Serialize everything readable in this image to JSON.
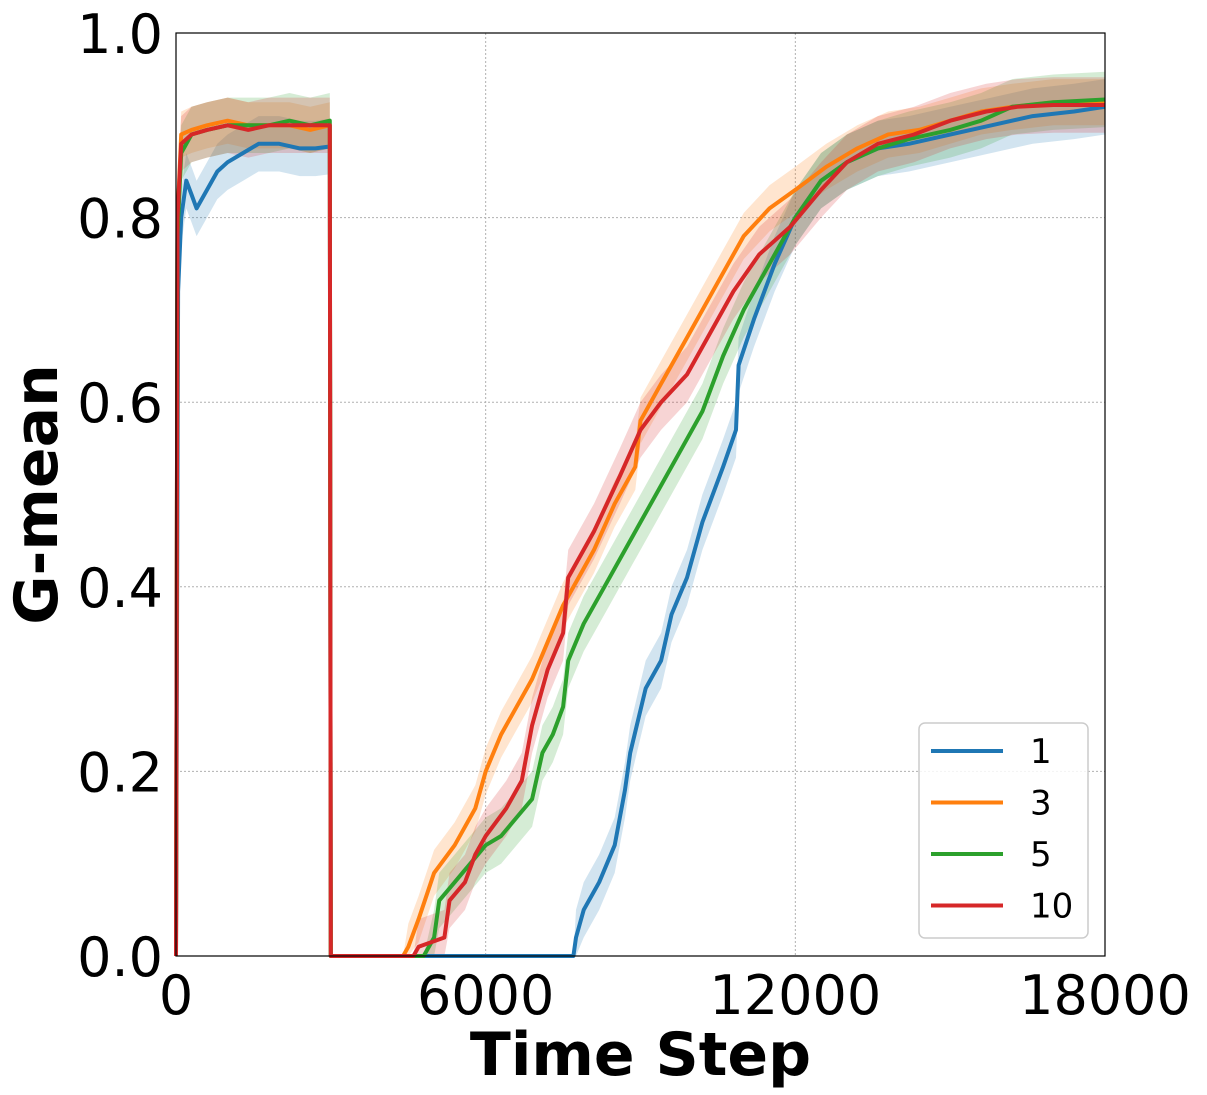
{
  "chart_data": {
    "type": "line",
    "xlabel": "Time Step",
    "ylabel": "G-mean",
    "xlim": [
      0,
      18000
    ],
    "ylim": [
      0,
      1
    ],
    "xticks": [
      0,
      6000,
      12000,
      18000
    ],
    "xtick_labels": [
      "0",
      "6000",
      "12000",
      "18000"
    ],
    "yticks": [
      0,
      0.2,
      0.4,
      0.6,
      0.8,
      1.0
    ],
    "ytick_labels": [
      "0.0",
      "0.2",
      "0.4",
      "0.6",
      "0.8",
      "1.0"
    ],
    "grid": true,
    "legend_position": "lower-right",
    "series": [
      {
        "name": "1",
        "color": "#1f77b4",
        "band": 0.03,
        "points": [
          [
            0,
            0
          ],
          [
            40,
            0.72
          ],
          [
            100,
            0.8
          ],
          [
            200,
            0.84
          ],
          [
            300,
            0.825
          ],
          [
            400,
            0.81
          ],
          [
            600,
            0.83
          ],
          [
            800,
            0.85
          ],
          [
            1000,
            0.86
          ],
          [
            1300,
            0.87
          ],
          [
            1600,
            0.88
          ],
          [
            2000,
            0.88
          ],
          [
            2400,
            0.875
          ],
          [
            2700,
            0.875
          ],
          [
            2980,
            0.877
          ],
          [
            3000,
            0
          ],
          [
            4800,
            0
          ],
          [
            7700,
            0
          ],
          [
            7750,
            0.02
          ],
          [
            7900,
            0.05
          ],
          [
            8200,
            0.08
          ],
          [
            8500,
            0.12
          ],
          [
            8700,
            0.18
          ],
          [
            8800,
            0.22
          ],
          [
            9100,
            0.29
          ],
          [
            9400,
            0.32
          ],
          [
            9600,
            0.37
          ],
          [
            9900,
            0.41
          ],
          [
            10200,
            0.47
          ],
          [
            10600,
            0.53
          ],
          [
            10850,
            0.57
          ],
          [
            10900,
            0.64
          ],
          [
            11200,
            0.69
          ],
          [
            11600,
            0.75
          ],
          [
            12000,
            0.8
          ],
          [
            12500,
            0.84
          ],
          [
            13000,
            0.86
          ],
          [
            13600,
            0.875
          ],
          [
            14200,
            0.88
          ],
          [
            15000,
            0.89
          ],
          [
            15800,
            0.9
          ],
          [
            16600,
            0.91
          ],
          [
            17400,
            0.915
          ],
          [
            18000,
            0.92
          ]
        ]
      },
      {
        "name": "3",
        "color": "#ff7f0e",
        "band": 0.025,
        "points": [
          [
            0,
            0
          ],
          [
            30,
            0.8
          ],
          [
            100,
            0.89
          ],
          [
            300,
            0.895
          ],
          [
            600,
            0.9
          ],
          [
            1000,
            0.905
          ],
          [
            1400,
            0.9
          ],
          [
            1800,
            0.9
          ],
          [
            2200,
            0.9
          ],
          [
            2600,
            0.895
          ],
          [
            2980,
            0.9
          ],
          [
            3000,
            0
          ],
          [
            4400,
            0
          ],
          [
            4500,
            0.01
          ],
          [
            4700,
            0.04
          ],
          [
            5000,
            0.09
          ],
          [
            5400,
            0.12
          ],
          [
            5800,
            0.16
          ],
          [
            6000,
            0.2
          ],
          [
            6300,
            0.24
          ],
          [
            6600,
            0.27
          ],
          [
            6900,
            0.3
          ],
          [
            7200,
            0.34
          ],
          [
            7500,
            0.38
          ],
          [
            7800,
            0.41
          ],
          [
            8100,
            0.44
          ],
          [
            8500,
            0.49
          ],
          [
            8900,
            0.53
          ],
          [
            9000,
            0.58
          ],
          [
            9400,
            0.62
          ],
          [
            9900,
            0.67
          ],
          [
            10500,
            0.73
          ],
          [
            11000,
            0.78
          ],
          [
            11500,
            0.81
          ],
          [
            12000,
            0.83
          ],
          [
            12600,
            0.855
          ],
          [
            13200,
            0.875
          ],
          [
            13800,
            0.89
          ],
          [
            14400,
            0.895
          ],
          [
            15000,
            0.905
          ],
          [
            15600,
            0.915
          ],
          [
            16200,
            0.92
          ],
          [
            17000,
            0.925
          ],
          [
            18000,
            0.925
          ]
        ]
      },
      {
        "name": "5",
        "color": "#2ca02c",
        "band": 0.03,
        "points": [
          [
            0,
            0
          ],
          [
            30,
            0.78
          ],
          [
            100,
            0.87
          ],
          [
            300,
            0.89
          ],
          [
            600,
            0.895
          ],
          [
            1000,
            0.9
          ],
          [
            1400,
            0.9
          ],
          [
            1800,
            0.9
          ],
          [
            2200,
            0.905
          ],
          [
            2600,
            0.9
          ],
          [
            2980,
            0.905
          ],
          [
            3000,
            0
          ],
          [
            4800,
            0
          ],
          [
            5000,
            0.02
          ],
          [
            5100,
            0.06
          ],
          [
            5400,
            0.08
          ],
          [
            5700,
            0.1
          ],
          [
            6000,
            0.12
          ],
          [
            6300,
            0.13
          ],
          [
            6600,
            0.15
          ],
          [
            6900,
            0.17
          ],
          [
            7100,
            0.22
          ],
          [
            7300,
            0.24
          ],
          [
            7500,
            0.27
          ],
          [
            7600,
            0.32
          ],
          [
            7900,
            0.36
          ],
          [
            8300,
            0.4
          ],
          [
            8800,
            0.45
          ],
          [
            9300,
            0.5
          ],
          [
            9800,
            0.55
          ],
          [
            10200,
            0.59
          ],
          [
            10600,
            0.65
          ],
          [
            11000,
            0.7
          ],
          [
            11500,
            0.75
          ],
          [
            12000,
            0.8
          ],
          [
            12500,
            0.84
          ],
          [
            13000,
            0.86
          ],
          [
            13600,
            0.875
          ],
          [
            14200,
            0.885
          ],
          [
            15000,
            0.895
          ],
          [
            15600,
            0.905
          ],
          [
            16200,
            0.92
          ],
          [
            17000,
            0.925
          ],
          [
            18000,
            0.928
          ]
        ]
      },
      {
        "name": "10",
        "color": "#d62728",
        "band": 0.03,
        "points": [
          [
            0,
            0
          ],
          [
            30,
            0.8
          ],
          [
            100,
            0.88
          ],
          [
            300,
            0.89
          ],
          [
            600,
            0.895
          ],
          [
            1000,
            0.9
          ],
          [
            1400,
            0.895
          ],
          [
            1800,
            0.9
          ],
          [
            2200,
            0.9
          ],
          [
            2600,
            0.9
          ],
          [
            2980,
            0.9
          ],
          [
            3000,
            0
          ],
          [
            4600,
            0
          ],
          [
            4700,
            0.01
          ],
          [
            5200,
            0.02
          ],
          [
            5300,
            0.06
          ],
          [
            5600,
            0.08
          ],
          [
            5800,
            0.11
          ],
          [
            6000,
            0.13
          ],
          [
            6400,
            0.16
          ],
          [
            6700,
            0.19
          ],
          [
            6900,
            0.25
          ],
          [
            7200,
            0.31
          ],
          [
            7500,
            0.35
          ],
          [
            7600,
            0.41
          ],
          [
            8100,
            0.46
          ],
          [
            8600,
            0.52
          ],
          [
            9000,
            0.57
          ],
          [
            9400,
            0.6
          ],
          [
            9900,
            0.63
          ],
          [
            10300,
            0.67
          ],
          [
            10800,
            0.72
          ],
          [
            11300,
            0.76
          ],
          [
            11900,
            0.79
          ],
          [
            12500,
            0.83
          ],
          [
            13000,
            0.86
          ],
          [
            13600,
            0.88
          ],
          [
            14300,
            0.89
          ],
          [
            15000,
            0.905
          ],
          [
            15700,
            0.915
          ],
          [
            16300,
            0.92
          ],
          [
            17000,
            0.922
          ],
          [
            18000,
            0.922
          ]
        ]
      }
    ]
  }
}
